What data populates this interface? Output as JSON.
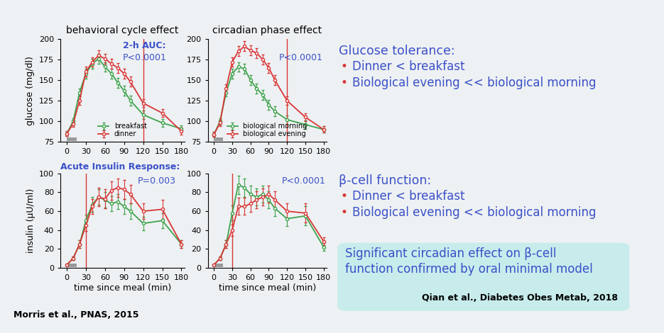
{
  "chart_data": [
    {
      "type": "line",
      "title": "behavioral cycle effect",
      "y_label": "glucose (mg/dl)",
      "x": [
        0,
        10,
        20,
        30,
        40,
        50,
        60,
        70,
        80,
        90,
        100,
        120,
        150,
        180
      ],
      "series": [
        {
          "name": "breakfast",
          "color": "#3fa34d",
          "values": [
            85,
            100,
            135,
            158,
            170,
            176,
            166,
            158,
            147,
            137,
            125,
            108,
            98,
            91
          ],
          "errors": [
            3,
            4,
            5,
            6,
            6,
            6,
            6,
            6,
            6,
            6,
            6,
            5,
            5,
            4
          ]
        },
        {
          "name": "dinner",
          "color": "#d93636",
          "values": [
            85,
            97,
            125,
            160,
            172,
            180,
            176,
            170,
            165,
            158,
            148,
            122,
            110,
            88
          ],
          "errors": [
            3,
            4,
            5,
            6,
            6,
            6,
            6,
            6,
            6,
            6,
            6,
            5,
            5,
            4
          ]
        }
      ],
      "marker": "o",
      "legend": "lower center",
      "annotations": [
        "2-h AUC:",
        "P<0.0001"
      ],
      "vline": 120,
      "meal": [
        0,
        15
      ],
      "xlim": [
        -10,
        185
      ],
      "ylim": [
        75,
        200
      ],
      "xticks": [
        0,
        30,
        60,
        90,
        120,
        150,
        180
      ],
      "yticks": [
        75,
        100,
        125,
        150,
        175,
        200
      ]
    },
    {
      "type": "line",
      "title": "circadian phase effect",
      "x": [
        0,
        10,
        20,
        30,
        40,
        50,
        60,
        70,
        80,
        90,
        100,
        120,
        150,
        180
      ],
      "series": [
        {
          "name": "biological morning",
          "color": "#3fa34d",
          "values": [
            84,
            100,
            135,
            158,
            166,
            164,
            150,
            140,
            132,
            120,
            112,
            102,
            96,
            90
          ],
          "errors": [
            3,
            4,
            5,
            6,
            6,
            6,
            6,
            6,
            6,
            6,
            6,
            5,
            5,
            4
          ]
        },
        {
          "name": "biological evening",
          "color": "#d93636",
          "values": [
            84,
            98,
            140,
            172,
            185,
            191,
            186,
            183,
            175,
            165,
            150,
            125,
            105,
            90
          ],
          "errors": [
            3,
            4,
            5,
            6,
            6,
            6,
            6,
            6,
            6,
            6,
            6,
            5,
            5,
            4
          ]
        }
      ],
      "marker": "o",
      "legend": "lower center",
      "annotations": [
        "P<0.0001"
      ],
      "vline": 120,
      "meal": [
        0,
        15
      ],
      "xlim": [
        -10,
        185
      ],
      "ylim": [
        75,
        200
      ],
      "xticks": [
        0,
        30,
        60,
        90,
        120,
        150,
        180
      ],
      "yticks": [
        75,
        100,
        125,
        150,
        175,
        200
      ]
    },
    {
      "type": "line",
      "y_label": "insulin (μU/ml)",
      "x_label": "time since meal (min)",
      "x": [
        0,
        10,
        20,
        30,
        40,
        50,
        60,
        70,
        80,
        90,
        100,
        120,
        150,
        180
      ],
      "series": [
        {
          "color": "#3fa34d",
          "values": [
            3,
            10,
            25,
            50,
            67,
            75,
            72,
            68,
            70,
            65,
            60,
            47,
            50,
            25
          ],
          "errors": [
            1,
            2,
            4,
            6,
            8,
            8,
            8,
            8,
            8,
            8,
            8,
            7,
            8,
            4
          ]
        },
        {
          "color": "#d93636",
          "values": [
            3,
            10,
            25,
            45,
            65,
            75,
            73,
            82,
            85,
            83,
            78,
            60,
            62,
            25
          ],
          "errors": [
            1,
            2,
            4,
            6,
            8,
            10,
            10,
            10,
            10,
            10,
            10,
            8,
            10,
            4
          ]
        }
      ],
      "marker": "o",
      "annotations": [
        "Acute Insulin Response:",
        "P=0.003"
      ],
      "vline": 30,
      "meal": [
        0,
        15
      ],
      "xlim": [
        -10,
        185
      ],
      "ylim": [
        0,
        100
      ],
      "xticks": [
        0,
        30,
        60,
        90,
        120,
        150,
        180
      ],
      "yticks": [
        0,
        20,
        40,
        60,
        80,
        100
      ]
    },
    {
      "type": "line",
      "x_label": "time since meal (min)",
      "x": [
        0,
        10,
        20,
        30,
        40,
        50,
        60,
        70,
        80,
        90,
        100,
        120,
        150,
        180
      ],
      "series": [
        {
          "color": "#3fa34d",
          "values": [
            3,
            10,
            25,
            58,
            88,
            85,
            78,
            75,
            78,
            72,
            63,
            52,
            55,
            22
          ],
          "errors": [
            1,
            2,
            4,
            8,
            10,
            10,
            9,
            9,
            9,
            9,
            8,
            8,
            10,
            4
          ]
        },
        {
          "color": "#d93636",
          "values": [
            3,
            10,
            25,
            40,
            65,
            65,
            68,
            72,
            75,
            78,
            72,
            60,
            58,
            28
          ],
          "errors": [
            1,
            2,
            4,
            6,
            9,
            9,
            9,
            9,
            9,
            9,
            9,
            8,
            10,
            4
          ]
        }
      ],
      "marker": "o",
      "annotations": [
        "P<0.0001"
      ],
      "vline": 30,
      "meal": [
        0,
        15
      ],
      "xlim": [
        -10,
        185
      ],
      "ylim": [
        0,
        100
      ],
      "xticks": [
        0,
        30,
        60,
        90,
        120,
        150,
        180
      ],
      "yticks": [
        0,
        20,
        40,
        60,
        80,
        100
      ]
    }
  ],
  "side_text": {
    "bullet": "•",
    "glucose": {
      "heading": "Glucose tolerance:",
      "items": [
        "Dinner < breakfast",
        "Biological evening << biological morning"
      ]
    },
    "beta_cell": {
      "heading": "β-cell function:",
      "items": [
        "Dinner < breakfast",
        "Biological evening << biological morning"
      ]
    },
    "box": {
      "lines": [
        "Significant circadian effect on β-cell",
        "function confirmed by oral minimal model"
      ],
      "citation": "Qian et al., Diabetes Obes Metab, 2018"
    }
  },
  "citation": "Morris et al., PNAS, 2015"
}
